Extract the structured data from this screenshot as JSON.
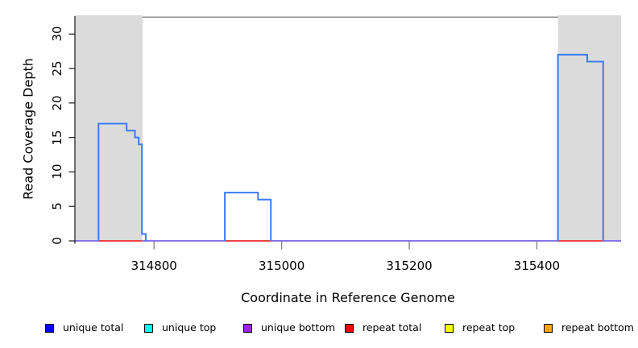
{
  "chart_data": {
    "type": "line",
    "subtype": "step-coverage",
    "title": "",
    "xlabel": "Coordinate in Reference Genome",
    "ylabel": "Read Coverage Depth",
    "xlim": [
      314676,
      315532
    ],
    "ylim": [
      0,
      32.6
    ],
    "x_ticks": [
      314800,
      315000,
      315200,
      315400
    ],
    "y_ticks": [
      0,
      5,
      10,
      15,
      20,
      25,
      30
    ],
    "grid": false,
    "legend_position": "bottom",
    "shaded_regions": [
      {
        "label": "repeat-region-left",
        "x0": 314676,
        "x1": 314782,
        "color": "#DBDBDB"
      },
      {
        "label": "repeat-region-right",
        "x0": 315433,
        "x1": 315532,
        "color": "#DBDBDB"
      }
    ],
    "top_segment": {
      "x0": 314782,
      "x1": 315433,
      "y": 32.45,
      "color": "#8F8F8F"
    },
    "series": [
      {
        "name": "unique total coverage",
        "color": "#3B7CF5",
        "style": "step",
        "humps": [
          [
            [
              314713,
              0
            ],
            [
              314713,
              17
            ],
            [
              314757,
              17
            ],
            [
              314757,
              16
            ],
            [
              314770,
              16
            ],
            [
              314770,
              15
            ],
            [
              314776,
              15
            ],
            [
              314776,
              14
            ],
            [
              314781,
              14
            ],
            [
              314781,
              1
            ],
            [
              314787,
              1
            ],
            [
              314787,
              0
            ]
          ],
          [
            [
              314911,
              0
            ],
            [
              314911,
              7
            ],
            [
              314963,
              7
            ],
            [
              314963,
              6
            ],
            [
              314983,
              6
            ],
            [
              314983,
              0
            ]
          ],
          [
            [
              315433,
              0
            ],
            [
              315433,
              27
            ],
            [
              315479,
              27
            ],
            [
              315479,
              26
            ],
            [
              315504,
              26
            ],
            [
              315504,
              0
            ]
          ]
        ]
      },
      {
        "name": "repeat total baseline",
        "color": "#EE4444",
        "style": "baseline-segments",
        "y": 0,
        "segments": [
          [
            314713,
            314781
          ],
          [
            314911,
            314983
          ],
          [
            315433,
            315504
          ]
        ]
      },
      {
        "name": "unique bottom baseline",
        "color": "#8674EE",
        "style": "baseline-segments",
        "y": 0,
        "segments": [
          [
            314676,
            314713
          ],
          [
            314781,
            314911
          ],
          [
            314983,
            315433
          ],
          [
            315504,
            315532
          ]
        ]
      }
    ]
  },
  "axes": {
    "x_tick_labels": [
      "314800",
      "315000",
      "315200",
      "315400"
    ],
    "y_tick_labels": [
      "0",
      "5",
      "10",
      "15",
      "20",
      "25",
      "30"
    ]
  },
  "legend": {
    "items": [
      {
        "label": "unique total",
        "color": "#0000FF"
      },
      {
        "label": "unique top",
        "color": "#00FFFF"
      },
      {
        "label": "unique bottom",
        "color": "#A020F0"
      },
      {
        "label": "repeat total",
        "color": "#FF0000"
      },
      {
        "label": "repeat top",
        "color": "#FFFF00"
      },
      {
        "label": "repeat bottom",
        "color": "#FFA500"
      }
    ]
  }
}
